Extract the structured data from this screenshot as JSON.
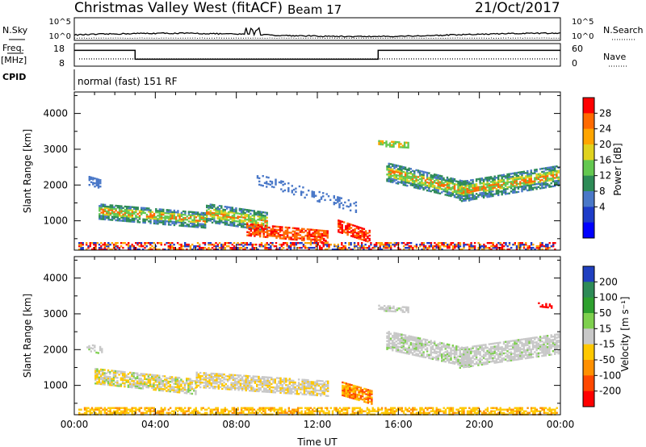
{
  "header": {
    "station": "Christmas Valley West (fitACF)",
    "beam": "Beam 17",
    "date": "21/Oct/2017",
    "mode": "normal (fast) 151 RF"
  },
  "strip_labels": {
    "nsky": "N.Sky",
    "nsearch": "N.Search",
    "freq": "Freq.",
    "freq_unit": "[MHz]",
    "nave": "Nave",
    "cpid": "CPID"
  },
  "chart_data": [
    {
      "type": "line",
      "panel": "noise",
      "y_left_ticks": [
        "10^5",
        "10^0"
      ],
      "y_right_ticks": [
        "10^5",
        "10^0"
      ],
      "series_left": "N.Sky",
      "series_right": "N.Search"
    },
    {
      "type": "line",
      "panel": "frequency",
      "y_left_ticks": [
        "18",
        "8"
      ],
      "y_right_ticks": [
        "60",
        "0"
      ],
      "ylim_left": [
        8,
        18
      ],
      "ylim_right": [
        0,
        60
      ],
      "freq_steps": [
        {
          "t0": 0,
          "t1": 3,
          "value": 16
        },
        {
          "t0": 3,
          "t1": 15,
          "value": 11
        },
        {
          "t0": 15,
          "t1": 24,
          "value": 16
        }
      ]
    },
    {
      "type": "heatmap",
      "panel": "power",
      "ylabel": "Slant Range [km]",
      "y_ticks": [
        1000,
        2000,
        3000,
        4000
      ],
      "ylim": [
        180,
        4600
      ],
      "xlim": [
        0,
        24
      ],
      "colorbar": {
        "label": "Power [dB]",
        "ticks": [
          "28",
          "24",
          "20",
          "16",
          "12",
          "8",
          "4"
        ],
        "colors": [
          "#ff0000",
          "#ff6a00",
          "#ffa500",
          "#e0d21e",
          "#64c850",
          "#2e8b57",
          "#4a78c8",
          "#1e3cc8",
          "#0000ff"
        ]
      }
    },
    {
      "type": "heatmap",
      "panel": "velocity",
      "ylabel": "Slant Range [km]",
      "xlabel": "Time UT",
      "y_ticks": [
        1000,
        2000,
        3000,
        4000
      ],
      "ylim": [
        180,
        4600
      ],
      "xlim": [
        0,
        24
      ],
      "x_ticks": [
        "00:00",
        "04:00",
        "08:00",
        "12:00",
        "16:00",
        "20:00",
        "00:00"
      ],
      "colorbar": {
        "label": "Velocity [m s⁻¹]",
        "ticks": [
          "200",
          "100",
          "50",
          "15",
          "-15",
          "-50",
          "-100",
          "-200"
        ],
        "colors": [
          "#2040c0",
          "#2e8b57",
          "#2ea02e",
          "#7ed04e",
          "#c8c8c8",
          "#ffc800",
          "#ff9000",
          "#ff4800",
          "#ff0000"
        ]
      }
    }
  ]
}
